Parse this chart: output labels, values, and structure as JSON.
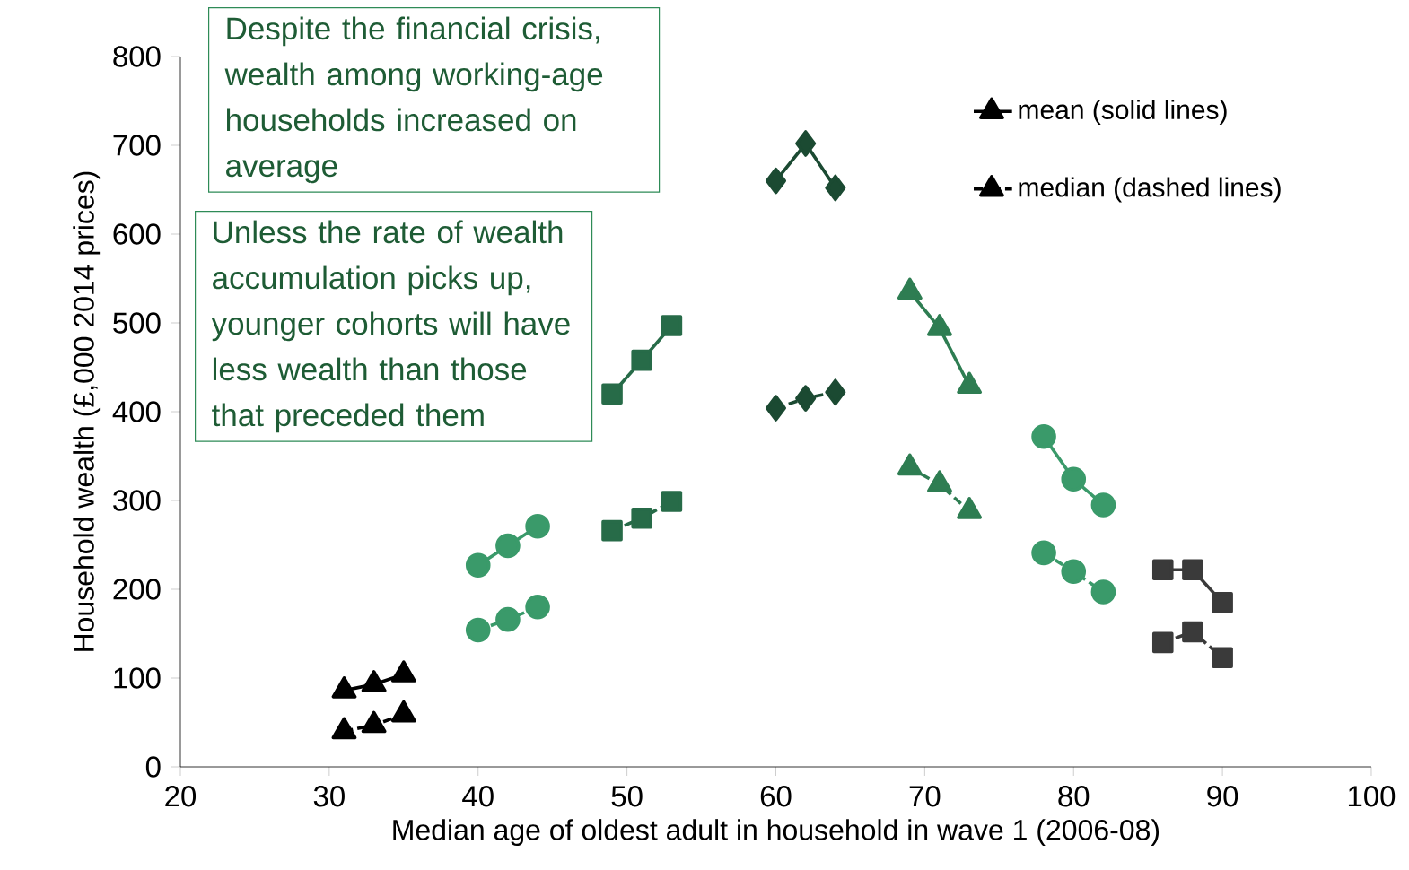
{
  "chart_data": {
    "type": "line",
    "xlabel": "Median age of oldest adult in household in wave 1 (2006-08)",
    "ylabel": "Household wealth (£,000 2014 prices)",
    "xlim": [
      20,
      100
    ],
    "xticks": [
      20,
      30,
      40,
      50,
      60,
      70,
      80,
      90,
      100
    ],
    "ylim": [
      0,
      800
    ],
    "yticks": [
      0,
      100,
      200,
      300,
      400,
      500,
      600,
      700,
      800
    ],
    "legend": "top right",
    "grid": false,
    "annotations": [
      "Despite the financial crisis, wealth among working-age households increased on average",
      "Unless the rate of wealth accumulation picks up, younger cohorts will have less wealth than those that preceded them"
    ],
    "series": [
      {
        "name": "mean (solid lines)",
        "color": "#000000",
        "marker": "triangle",
        "line_style": "solid",
        "x": [
          31,
          33,
          35
        ],
        "values": [
          86,
          93,
          104
        ]
      },
      {
        "name": "median (dashed lines)",
        "color": "#000000",
        "marker": "triangle",
        "line_style": "dashed",
        "x": [
          31,
          33,
          35
        ],
        "values": [
          40,
          47,
          59
        ]
      },
      {
        "color": "#3a9a6a",
        "marker": "circle",
        "line_style": "solid",
        "x": [
          40,
          42,
          44
        ],
        "values": [
          227,
          249,
          271
        ]
      },
      {
        "color": "#3a9a6a",
        "marker": "circle",
        "line_style": "dashed",
        "x": [
          40,
          42,
          44
        ],
        "values": [
          154,
          166,
          180
        ]
      },
      {
        "color": "#276b48",
        "marker": "square",
        "line_style": "solid",
        "x": [
          49,
          51,
          53
        ],
        "values": [
          420,
          458,
          497
        ]
      },
      {
        "color": "#276b48",
        "marker": "square",
        "line_style": "dashed",
        "x": [
          49,
          51,
          53
        ],
        "values": [
          266,
          280,
          299
        ]
      },
      {
        "color": "#1b4a32",
        "marker": "diamond",
        "line_style": "solid",
        "x": [
          60,
          62,
          64
        ],
        "values": [
          660,
          702,
          652
        ]
      },
      {
        "color": "#1b4a32",
        "marker": "diamond",
        "line_style": "dashed",
        "x": [
          60,
          62,
          64
        ],
        "values": [
          404,
          415,
          422
        ]
      },
      {
        "color": "#2e7d52",
        "marker": "triangle",
        "line_style": "solid",
        "x": [
          69,
          71,
          73
        ],
        "values": [
          535,
          494,
          429
        ]
      },
      {
        "color": "#2e7d52",
        "marker": "triangle",
        "line_style": "dashed",
        "x": [
          69,
          71,
          73
        ],
        "values": [
          337,
          318,
          288
        ]
      },
      {
        "color": "#3a9a6a",
        "marker": "circle",
        "line_style": "solid",
        "x": [
          78,
          80,
          82
        ],
        "values": [
          372,
          324,
          295
        ]
      },
      {
        "color": "#3a9a6a",
        "marker": "circle",
        "line_style": "dashed",
        "x": [
          78,
          80,
          82
        ],
        "values": [
          241,
          220,
          197
        ]
      },
      {
        "color": "#3a3a3a",
        "marker": "square",
        "line_style": "solid",
        "x": [
          86,
          88,
          90
        ],
        "values": [
          222,
          222,
          185
        ]
      },
      {
        "color": "#3a3a3a",
        "marker": "square",
        "line_style": "dashed",
        "x": [
          86,
          88,
          90
        ],
        "values": [
          140,
          152,
          123
        ]
      }
    ]
  }
}
